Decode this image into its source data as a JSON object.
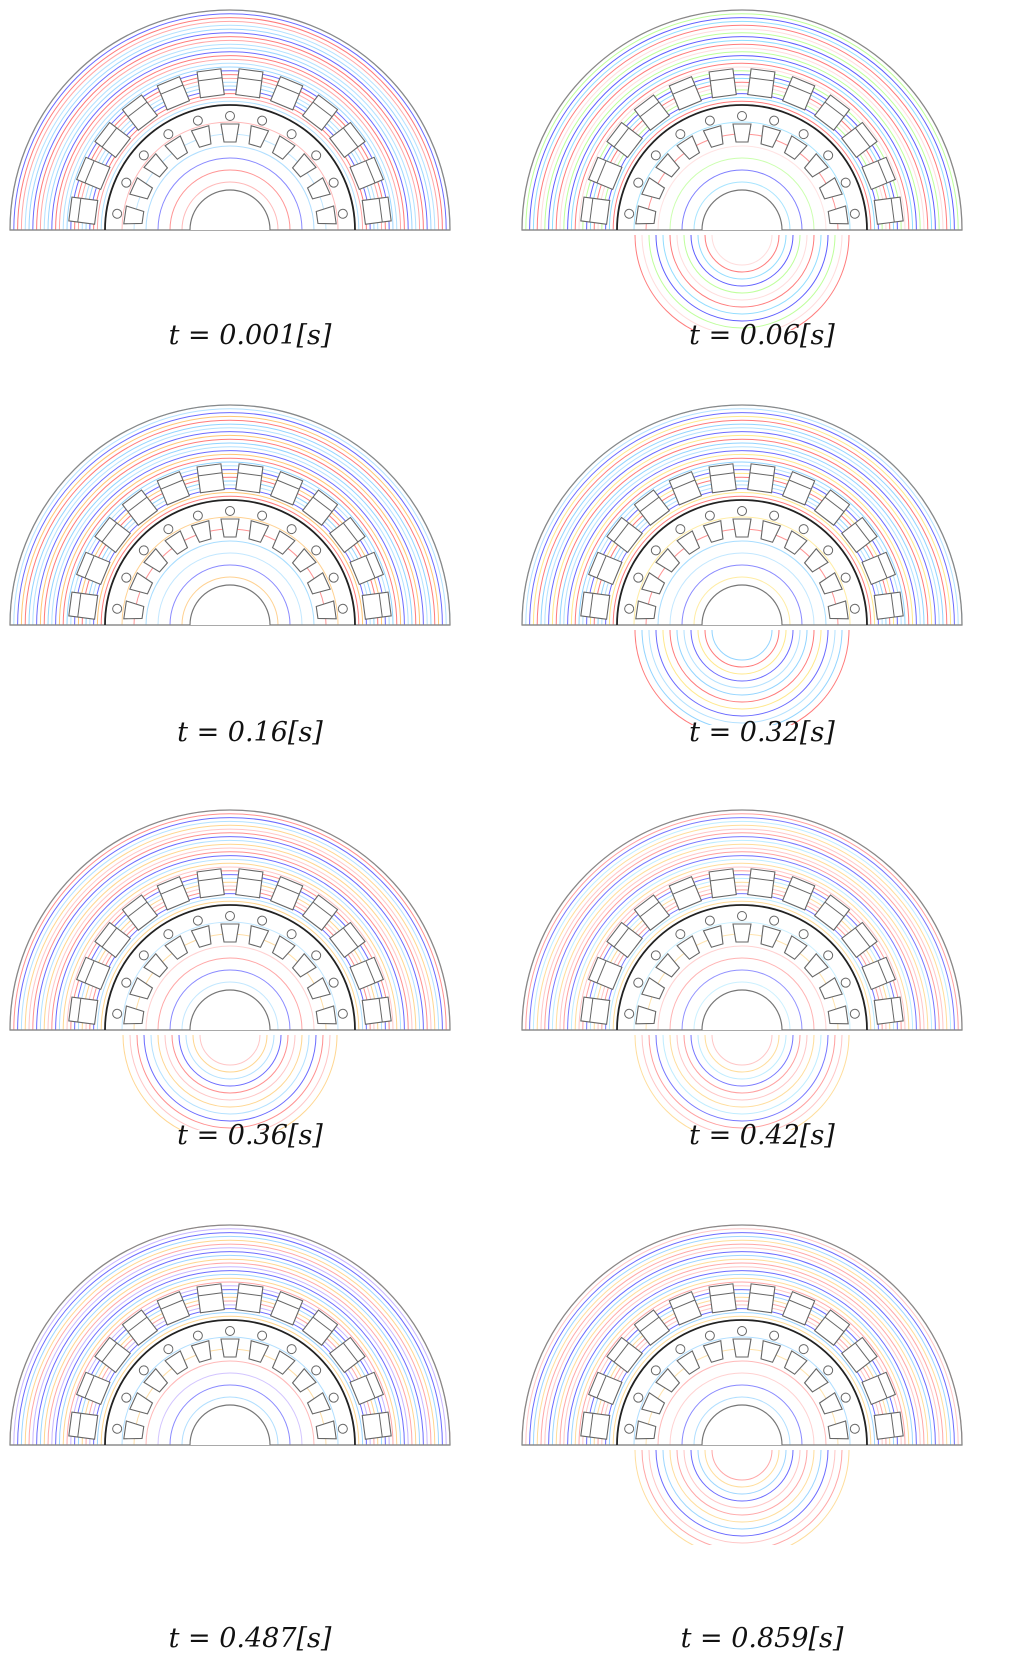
{
  "figure": {
    "panels": [
      {
        "caption": "t = 0.001[s]",
        "lower_field": false,
        "field_colors": [
          "#7cc8ff",
          "#9ad7ff",
          "#ff8a8a",
          "#ff4d4d",
          "#3a3aff"
        ]
      },
      {
        "caption": "t = 0.06[s]",
        "lower_field": true,
        "field_colors": [
          "#ffd0d0",
          "#ff5050",
          "#6dd2ff",
          "#2a2aff",
          "#a8ff7a"
        ]
      },
      {
        "caption": "t = 0.16[s]",
        "lower_field": false,
        "field_colors": [
          "#6ec6ff",
          "#ff4d4d",
          "#ffb347",
          "#3a3aff",
          "#9ad7ff"
        ]
      },
      {
        "caption": "t = 0.32[s]",
        "lower_field": true,
        "field_colors": [
          "#6ec6ff",
          "#ff4d4d",
          "#ffe066",
          "#3a3aff",
          "#9ad7ff"
        ]
      },
      {
        "caption": "t = 0.36[s]",
        "lower_field": true,
        "field_colors": [
          "#ffb3b3",
          "#ffc86b",
          "#9ad7ff",
          "#3a3aff",
          "#ff6b6b"
        ]
      },
      {
        "caption": "t = 0.42[s]",
        "lower_field": true,
        "field_colors": [
          "#ffb3b3",
          "#ffd27a",
          "#a8e6ff",
          "#4a4aff",
          "#ff8080"
        ]
      },
      {
        "caption": "t = 0.487[s]",
        "lower_field": false,
        "field_colors": [
          "#ff8a8a",
          "#ffc86b",
          "#7cc8ff",
          "#3a3aff",
          "#b49cff"
        ]
      },
      {
        "caption": "t = 0.859[s]",
        "lower_field": true,
        "field_colors": [
          "#ff8a8a",
          "#ffd27a",
          "#7cc8ff",
          "#3a3aff",
          "#ffb3b3"
        ]
      }
    ]
  }
}
